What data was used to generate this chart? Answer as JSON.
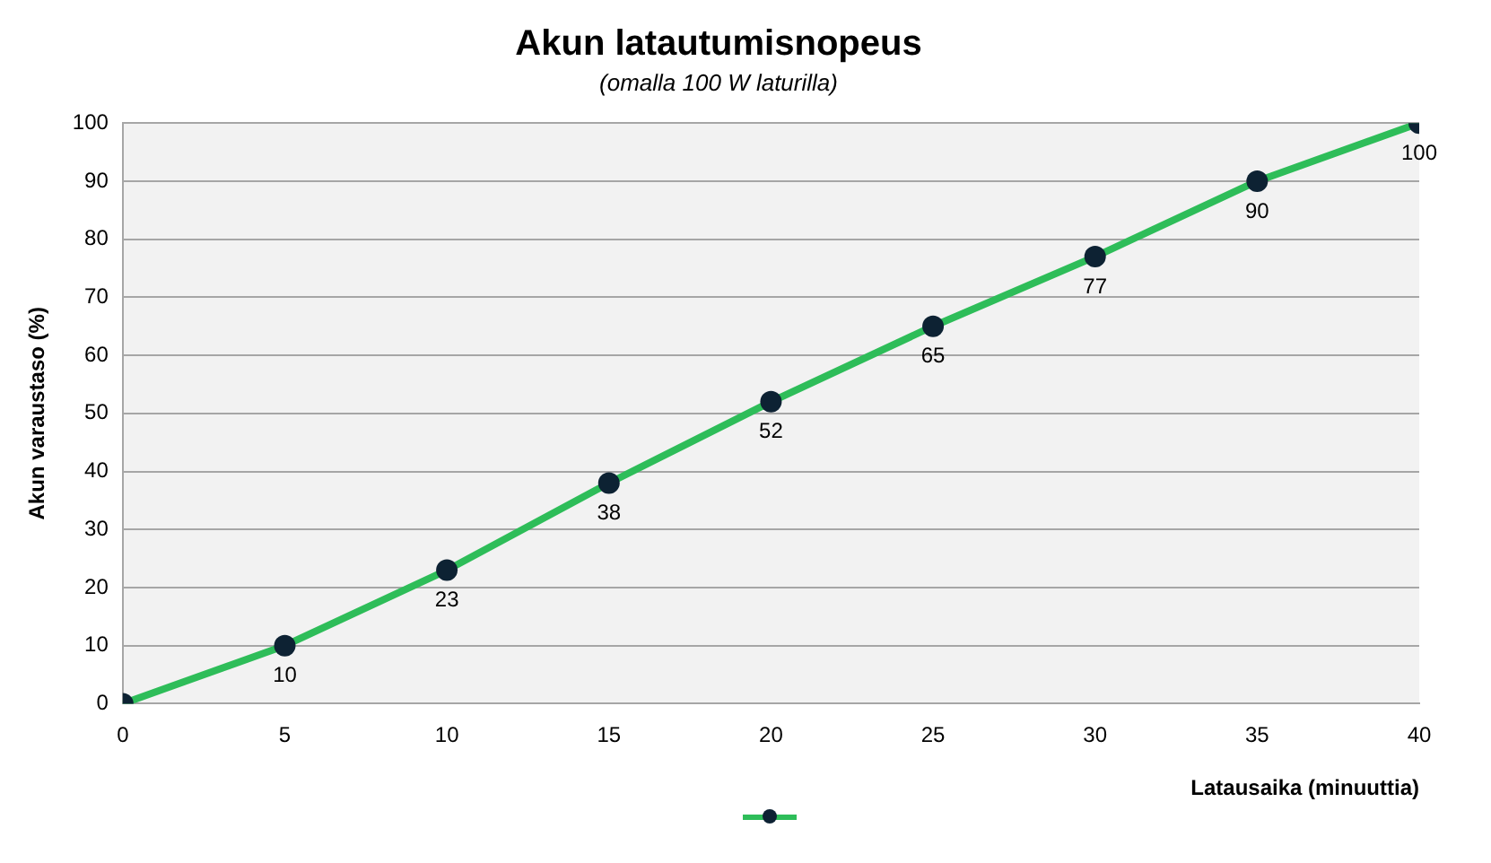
{
  "chart_data": {
    "type": "line",
    "title": "Akun latautumisnopeus",
    "subtitle": "(omalla 100 W laturilla)",
    "xlabel": "Latausaika (minuuttia)",
    "ylabel": "Akun varaustaso (%)",
    "x": [
      0,
      5,
      10,
      15,
      20,
      25,
      30,
      35,
      40
    ],
    "series": [
      {
        "color": "#2ebd59",
        "values": [
          0,
          10,
          23,
          38,
          52,
          65,
          77,
          90,
          100
        ],
        "value_labels": [
          null,
          "10",
          "23",
          "38",
          "52",
          "65",
          "77",
          "90",
          "100"
        ]
      }
    ],
    "xlim": [
      0,
      40
    ],
    "xticks": [
      0,
      5,
      10,
      15,
      20,
      25,
      30,
      35,
      40
    ],
    "ylim": [
      0,
      100
    ],
    "yticks": [
      0,
      10,
      20,
      30,
      40,
      50,
      60,
      70,
      80,
      90,
      100
    ],
    "grid": "y",
    "marker": "circle",
    "line_style": "solid"
  }
}
